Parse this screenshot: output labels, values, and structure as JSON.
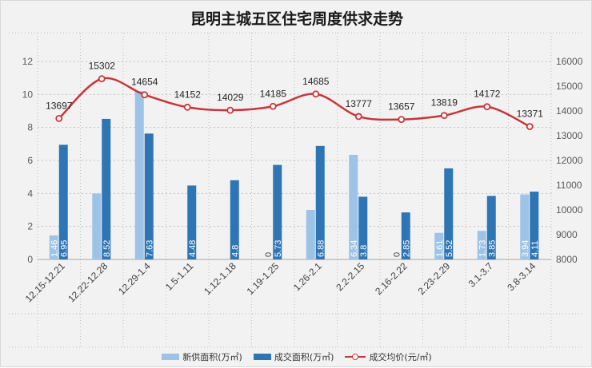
{
  "chart_data": {
    "type": "bar",
    "title": "昆明主城五区住宅周度供求走势",
    "categories": [
      "12.15-12.21",
      "12.22-12.28",
      "12.29-1.4",
      "1.5-1.11",
      "1.12-1.18",
      "1.19-1.25",
      "1.26-2.1",
      "2.2-2.15",
      "2.16-2.22",
      "2.23-2.29",
      "3.1-3.7",
      "3.8-3.14"
    ],
    "series": [
      {
        "name": "新供面积(万㎡)",
        "type": "bar",
        "axis": "left",
        "color": "#9dc3e6",
        "values": [
          1.46,
          4,
          10.2,
          null,
          null,
          0,
          3,
          6.34,
          0,
          1.61,
          1.73,
          3.94
        ],
        "labels": [
          "1.46",
          "",
          "",
          "",
          "",
          "0",
          "",
          "6.34",
          "0",
          "1.61",
          "1.73",
          "3.94"
        ]
      },
      {
        "name": "成交面积(万㎡)",
        "type": "bar",
        "axis": "left",
        "color": "#2e75b6",
        "values": [
          6.95,
          8.52,
          7.63,
          4.48,
          4.8,
          5.73,
          6.88,
          3.8,
          2.85,
          5.52,
          3.85,
          4.11
        ],
        "labels": [
          "6.95",
          "8.52",
          "7.63",
          "4.48",
          "4.8",
          "5.73",
          "6.88",
          "3.8",
          "2.85",
          "5.52",
          "3.85",
          "4.11"
        ]
      },
      {
        "name": "成交均价(元/㎡)",
        "type": "line",
        "axis": "right",
        "color": "#c8353a",
        "values": [
          13697,
          15302,
          14654,
          14152,
          14029,
          14185,
          14685,
          13777,
          13657,
          13819,
          14172,
          13371
        ],
        "labels": [
          "13697",
          "15302",
          "14654",
          "14152",
          "14029",
          "14185",
          "14685",
          "13777",
          "13657",
          "13819",
          "14172",
          "13371"
        ]
      }
    ],
    "y_left": {
      "ylim": [
        0,
        12
      ],
      "ticks": [
        "0",
        "2",
        "4",
        "6",
        "8",
        "10",
        "12"
      ]
    },
    "y_right": {
      "ylim": [
        8000,
        16000
      ],
      "ticks": [
        "8000",
        "9000",
        "10000",
        "11000",
        "12000",
        "13000",
        "14000",
        "15000",
        "16000"
      ]
    },
    "grid": true,
    "legend_position": "bottom"
  },
  "legend": {
    "supply": "新供面积(万㎡)",
    "deal": "成交面积(万㎡)",
    "price": "成交均价(元/㎡)"
  },
  "colors": {
    "supply": "#9dc3e6",
    "deal": "#2e75b6",
    "price": "#c8353a",
    "grid": "#bfbfbf"
  }
}
